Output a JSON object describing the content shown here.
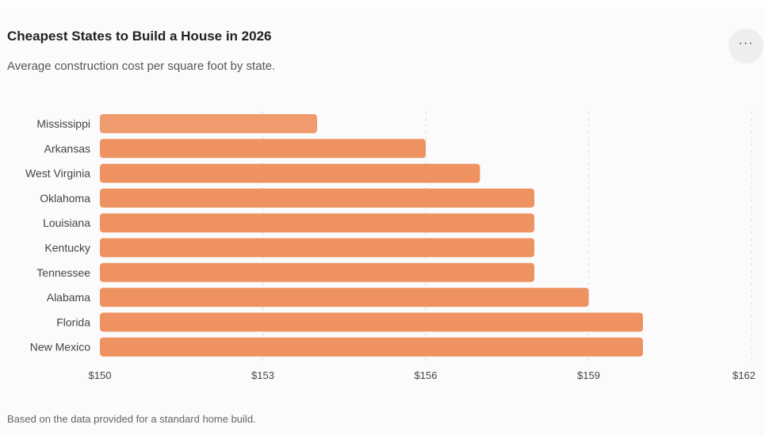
{
  "header": {
    "title": "Cheapest States to Build a House in 2026",
    "subtitle": "Average construction cost per square foot by state.",
    "menu_label": "···"
  },
  "footer": {
    "note": "Based on the data provided for a standard home build."
  },
  "colors": {
    "bar": "#ef9262",
    "bar_first": "#f09b6e",
    "grid": "#dddddd",
    "tick_text": "#444444",
    "label_text": "#444444"
  },
  "chart_data": {
    "type": "bar",
    "orientation": "horizontal",
    "categories": [
      "Mississippi",
      "Arkansas",
      "West Virginia",
      "Oklahoma",
      "Louisiana",
      "Kentucky",
      "Tennessee",
      "Alabama",
      "Florida",
      "New Mexico"
    ],
    "values": [
      154,
      156,
      157,
      158,
      158,
      158,
      158,
      159,
      160,
      160
    ],
    "xlim": [
      150,
      162
    ],
    "xticks": [
      150,
      153,
      156,
      159,
      162
    ],
    "xtick_labels": [
      "$150",
      "$153",
      "$156",
      "$159",
      "$162"
    ],
    "grid": true,
    "legend": "none"
  }
}
